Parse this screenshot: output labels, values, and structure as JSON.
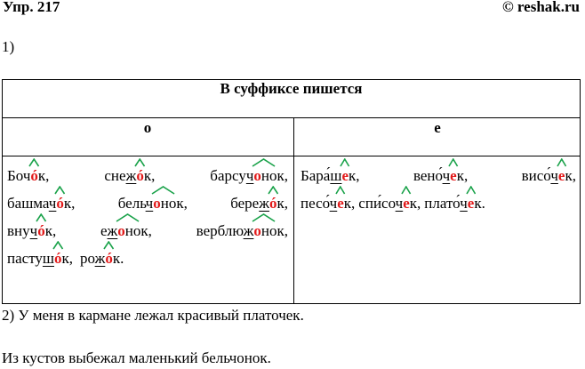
{
  "header": {
    "title": "Упр. 217",
    "source": "© reshak.ru"
  },
  "part1_label": "1)",
  "table": {
    "caption": "В суффиксе пишется",
    "col_o": "о",
    "col_e": "е",
    "o_words": [
      {
        "parts": [
          [
            "Боч",
            ""
          ],
          [
            "",
            ""
          ],
          [
            "ó",
            "red"
          ],
          [
            "к,",
            ""
          ]
        ],
        "underline": 2,
        "arc": "short"
      },
      {
        "parts": [
          [
            "снеж",
            ""
          ],
          [
            "ó",
            "red"
          ],
          [
            "к,",
            ""
          ]
        ],
        "arc": "short"
      },
      {
        "parts": [
          [
            "барсуч",
            ""
          ],
          [
            "о",
            "red"
          ],
          [
            "нок,",
            ""
          ]
        ],
        "arc": "long"
      },
      {
        "parts": [
          [
            "башмач",
            ""
          ],
          [
            "ó",
            "red"
          ],
          [
            "к,",
            ""
          ]
        ],
        "arc": "short"
      },
      {
        "parts": [
          [
            "бельч",
            ""
          ],
          [
            "о",
            "red"
          ],
          [
            "нок,",
            ""
          ]
        ],
        "arc": "long"
      },
      {
        "parts": [
          [
            "береж",
            ""
          ],
          [
            "ó",
            "red"
          ],
          [
            "к,",
            ""
          ]
        ],
        "arc": "short"
      },
      {
        "parts": [
          [
            "внуч",
            ""
          ],
          [
            "ó",
            "red"
          ],
          [
            "к,",
            ""
          ]
        ],
        "arc": "short"
      },
      {
        "parts": [
          [
            "еж",
            ""
          ],
          [
            "о",
            "red"
          ],
          [
            "нок,",
            ""
          ]
        ],
        "arc": "long"
      },
      {
        "parts": [
          [
            "верблюж",
            ""
          ],
          [
            "о",
            "red"
          ],
          [
            "нок,",
            ""
          ]
        ],
        "arc": "long"
      },
      {
        "parts": [
          [
            "пастуш",
            ""
          ],
          [
            "ó",
            "red"
          ],
          [
            "к,",
            ""
          ]
        ],
        "arc": "short"
      },
      {
        "parts": [
          [
            "рож",
            ""
          ],
          [
            "ó",
            "red"
          ],
          [
            "к.",
            ""
          ]
        ],
        "arc": "short"
      }
    ],
    "e_words": [
      {
        "parts": [
          [
            "Бара́ш",
            ""
          ],
          [
            "е",
            "red"
          ],
          [
            "к,",
            ""
          ]
        ],
        "arc": "short"
      },
      {
        "parts": [
          [
            "вено́ч",
            ""
          ],
          [
            "е",
            "red"
          ],
          [
            "к,",
            ""
          ]
        ],
        "arc": "short"
      },
      {
        "parts": [
          [
            "висо́ч",
            ""
          ],
          [
            "е",
            "red"
          ],
          [
            "к,",
            ""
          ]
        ],
        "arc": "short"
      },
      {
        "parts": [
          [
            "песо́ч",
            ""
          ],
          [
            "е",
            "red"
          ],
          [
            "к,",
            ""
          ]
        ],
        "arc": "short"
      },
      {
        "parts": [
          [
            "спи́соч",
            ""
          ],
          [
            "е",
            "red"
          ],
          [
            "к,",
            ""
          ]
        ],
        "arc": "short"
      },
      {
        "parts": [
          [
            "плато́ч",
            ""
          ],
          [
            "е",
            "red"
          ],
          [
            "к.",
            ""
          ]
        ],
        "arc": "short"
      }
    ]
  },
  "part2": "2) У меня в кармане лежал красивый платочек.",
  "part3": "Из кустов выбежал маленький бельчонок.",
  "colors": {
    "suffix_letter": "#e21a1a",
    "suffix_arc": "#1aa24a"
  }
}
